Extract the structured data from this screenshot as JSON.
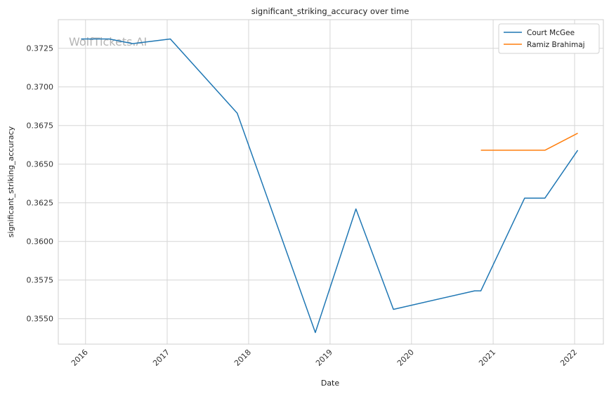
{
  "chart_data": {
    "type": "line",
    "title": "significant_striking_accuracy over time",
    "xlabel": "Date",
    "ylabel": "significant_striking_accuracy",
    "watermark": "WolfTickets.AI",
    "xlim": [
      "2015-09-01",
      "2022-05-10"
    ],
    "ylim": [
      0.35335,
      0.37435
    ],
    "x_ticks": [
      "2016",
      "2017",
      "2018",
      "2019",
      "2020",
      "2021",
      "2022"
    ],
    "y_ticks": [
      "0.3550",
      "0.3575",
      "0.3600",
      "0.3625",
      "0.3650",
      "0.3675",
      "0.3700",
      "0.3725"
    ],
    "grid": true,
    "legend_position": "top-right",
    "series": [
      {
        "name": "Court McGee",
        "color": "#1f77b4",
        "points": [
          {
            "x": "2015-12-12",
            "y": 0.3731
          },
          {
            "x": "2016-04-16",
            "y": 0.3731
          },
          {
            "x": "2016-07-30",
            "y": 0.3728
          },
          {
            "x": "2017-01-15",
            "y": 0.3731
          },
          {
            "x": "2017-11-11",
            "y": 0.3683
          },
          {
            "x": "2018-10-27",
            "y": 0.3541
          },
          {
            "x": "2019-04-27",
            "y": 0.3621
          },
          {
            "x": "2019-10-12",
            "y": 0.3556
          },
          {
            "x": "2020-10-10",
            "y": 0.3568
          },
          {
            "x": "2020-11-07",
            "y": 0.3568
          },
          {
            "x": "2021-05-22",
            "y": 0.3628
          },
          {
            "x": "2021-08-21",
            "y": 0.3628
          },
          {
            "x": "2022-01-15",
            "y": 0.3659
          }
        ]
      },
      {
        "name": "Ramiz Brahimaj",
        "color": "#ff7f0e",
        "points": [
          {
            "x": "2020-11-07",
            "y": 0.3659
          },
          {
            "x": "2021-08-21",
            "y": 0.3659
          },
          {
            "x": "2022-01-15",
            "y": 0.367
          }
        ]
      }
    ]
  }
}
